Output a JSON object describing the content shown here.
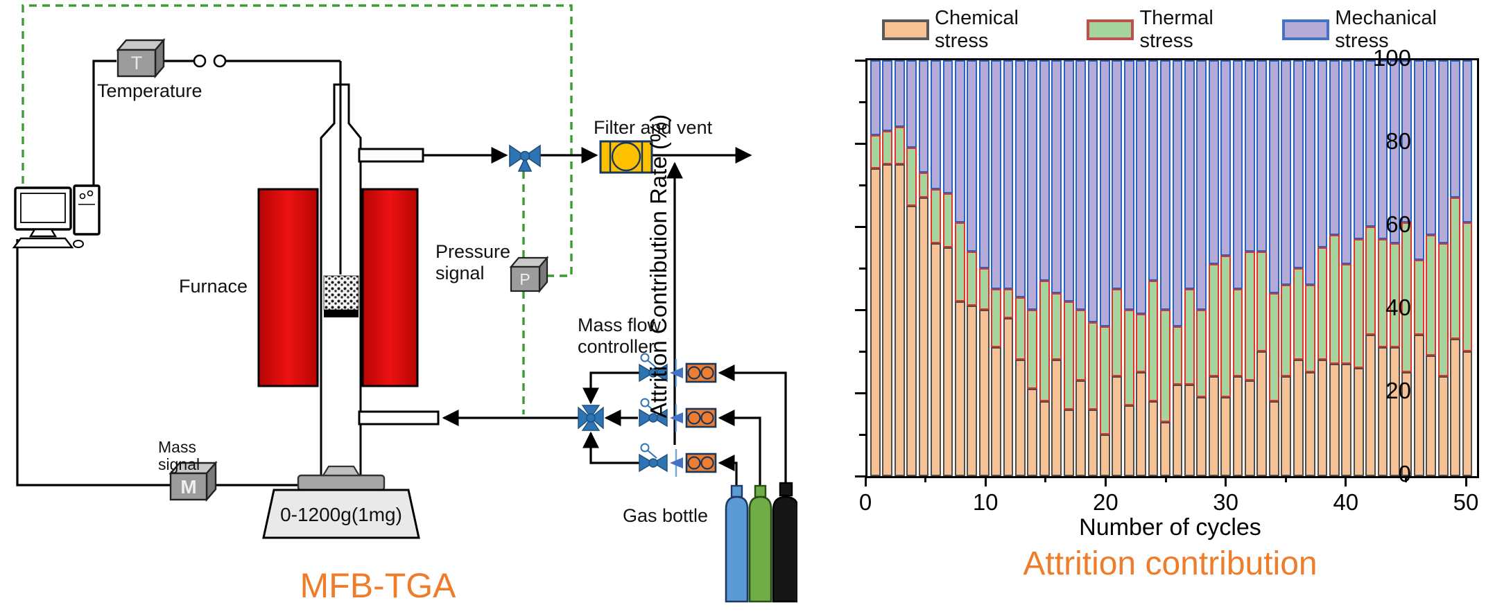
{
  "diagram": {
    "title": "MFB-TGA",
    "labels": {
      "temperature": "Temperature",
      "furnace": "Furnace",
      "pressure_signal_1": "Pressure",
      "pressure_signal_2": "signal",
      "filter_vent": "Filter and vent",
      "mass_flow_1": "Mass flow",
      "mass_flow_2": "controller",
      "gas_bottle": "Gas bottle",
      "mass_signal_1": "Mass",
      "mass_signal_2": "signal",
      "balance_range": "0-1200g(1mg)"
    },
    "sensor_letters": {
      "temperature": "T",
      "pressure": "P",
      "mass": "M"
    },
    "colors": {
      "title_orange": "#EE7C2B",
      "furnace_red": "#D60D0D",
      "valve_blue": "#2E74B5",
      "mfc_orange": "#ED7D31",
      "filter_gold": "#FFC000",
      "signal_dash_green": "#3F9C35",
      "bottle_blue": "#5B9BD5",
      "bottle_green": "#70AD47",
      "bottle_black": "#161616"
    }
  },
  "chart": {
    "legend": [
      {
        "label": "Chemical stress",
        "fill": "#F6C295",
        "border": "#595959"
      },
      {
        "label": "Thermal stress",
        "fill": "#A6D49F",
        "border": "#C0504D"
      },
      {
        "label": "Mechanical stress",
        "fill": "#B5ABD6",
        "border": "#4472C4"
      }
    ],
    "y_axis": {
      "label": "Attrition Contribution Rate (%)",
      "major_ticks": [
        0,
        20,
        40,
        60,
        80,
        100
      ],
      "minor_ticks": [
        10,
        30,
        50,
        70,
        90
      ]
    },
    "x_axis": {
      "label": "Number of cycles",
      "major_ticks": [
        0,
        10,
        20,
        30,
        40,
        50
      ],
      "minor_ticks": [
        5,
        15,
        25,
        35,
        45
      ]
    },
    "title": "Attrition contribution"
  },
  "chart_data": {
    "type": "bar",
    "stacked": true,
    "title": "Attrition contribution",
    "xlabel": "Number of cycles",
    "ylabel": "Attrition Contribution Rate (%)",
    "ylim": [
      0,
      100
    ],
    "xlim": [
      0,
      50
    ],
    "grid": false,
    "legend_position": "top",
    "categories": [
      1,
      2,
      3,
      4,
      5,
      6,
      7,
      8,
      9,
      10,
      11,
      12,
      13,
      14,
      15,
      16,
      17,
      18,
      19,
      20,
      21,
      22,
      23,
      24,
      25,
      26,
      27,
      28,
      29,
      30,
      31,
      32,
      33,
      34,
      35,
      36,
      37,
      38,
      39,
      40,
      41,
      42,
      43,
      44,
      45,
      46,
      47,
      48,
      49,
      50
    ],
    "series": [
      {
        "name": "Chemical stress",
        "values": [
          74,
          75,
          75,
          65,
          67,
          56,
          55,
          42,
          41,
          40,
          31,
          38,
          28,
          21,
          18,
          28,
          16,
          23,
          16,
          10,
          24,
          17,
          25,
          18,
          13,
          22,
          22,
          19,
          24,
          19,
          24,
          23,
          30,
          18,
          24,
          28,
          25,
          28,
          27,
          27,
          26,
          34,
          31,
          31,
          25,
          34,
          29,
          24,
          33,
          30
        ]
      },
      {
        "name": "Thermal stress",
        "values": [
          8,
          8,
          9,
          14,
          6,
          13,
          13,
          19,
          13,
          10,
          14,
          7,
          15,
          19,
          29,
          16,
          26,
          17,
          21,
          26,
          21,
          23,
          14,
          29,
          27,
          14,
          23,
          21,
          27,
          34,
          21,
          31,
          24,
          26,
          22,
          22,
          21,
          27,
          31,
          24,
          31,
          26,
          26,
          25,
          36,
          18,
          29,
          32,
          34,
          31
        ]
      },
      {
        "name": "Mechanical stress",
        "values": [
          18,
          17,
          16,
          21,
          27,
          31,
          32,
          39,
          46,
          50,
          55,
          55,
          57,
          60,
          53,
          56,
          58,
          60,
          63,
          64,
          55,
          60,
          61,
          53,
          60,
          64,
          55,
          60,
          49,
          47,
          55,
          46,
          46,
          56,
          54,
          50,
          54,
          45,
          42,
          49,
          43,
          40,
          43,
          44,
          39,
          48,
          42,
          44,
          33,
          39
        ]
      }
    ]
  }
}
